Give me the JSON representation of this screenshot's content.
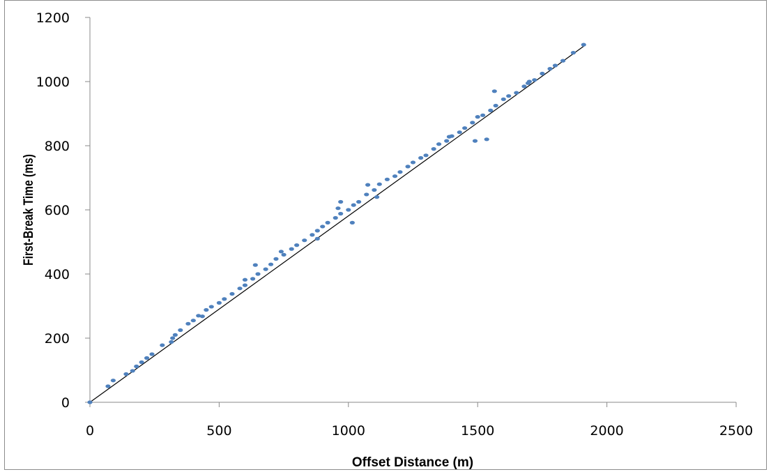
{
  "chart_data": {
    "type": "scatter",
    "title": "",
    "xlabel": "Offset Distance (m)",
    "ylabel": "First-Break Time (ms)",
    "xlim": [
      0,
      2500
    ],
    "ylim": [
      0,
      1200
    ],
    "xticks": [
      0,
      500,
      1000,
      1500,
      2000,
      2500
    ],
    "yticks": [
      0,
      200,
      400,
      600,
      800,
      1000,
      1200
    ],
    "xtick_labels": [
      "0",
      "500",
      "1000",
      "1500",
      "2000",
      "2500"
    ],
    "ytick_labels": [
      "0",
      "200",
      "400",
      "600",
      "800",
      "1000",
      "1200"
    ],
    "grid": false,
    "legend": "none",
    "colors": {
      "points": "#4f81bd",
      "trendline": "#000000",
      "axis": "#888888"
    },
    "trendline": {
      "type": "linear",
      "x": [
        0,
        1910
      ],
      "y": [
        0,
        1110
      ]
    },
    "series": [
      {
        "x": [
          0,
          70,
          90,
          140,
          180,
          200,
          220,
          240,
          280,
          320,
          330,
          350,
          380,
          400,
          420,
          450,
          470,
          500,
          520,
          550,
          580,
          600,
          630,
          650,
          680,
          700,
          720,
          750,
          780,
          800,
          830,
          860,
          880,
          900,
          920,
          950,
          970,
          1000,
          1020,
          1040,
          1070,
          1100,
          1120,
          1150,
          1180,
          1200,
          1230,
          1250,
          1280,
          1300,
          1330,
          1350,
          1380,
          1400,
          1430,
          1450,
          1480,
          1500,
          1520,
          1550,
          1570,
          1600,
          1620,
          1650,
          1680,
          1700,
          1720,
          1750,
          1780,
          1800,
          1830,
          1870,
          1910,
          640,
          740,
          880,
          970,
          1015,
          1075,
          1490,
          1535,
          1565,
          1695,
          1390,
          1110,
          960,
          600,
          435,
          315,
          165
        ],
        "y": [
          0,
          50,
          68,
          88,
          112,
          125,
          138,
          150,
          178,
          200,
          210,
          225,
          245,
          255,
          270,
          288,
          298,
          310,
          322,
          338,
          355,
          365,
          385,
          400,
          415,
          430,
          447,
          460,
          478,
          490,
          505,
          522,
          535,
          548,
          560,
          575,
          588,
          600,
          615,
          625,
          648,
          662,
          680,
          695,
          705,
          718,
          735,
          748,
          762,
          770,
          790,
          805,
          815,
          830,
          842,
          855,
          872,
          890,
          895,
          910,
          925,
          945,
          955,
          965,
          985,
          1000,
          1005,
          1025,
          1040,
          1050,
          1065,
          1090,
          1115,
          428,
          470,
          510,
          625,
          560,
          678,
          815,
          820,
          970,
          995,
          828,
          640,
          605,
          382,
          268,
          188,
          98
        ]
      }
    ]
  }
}
